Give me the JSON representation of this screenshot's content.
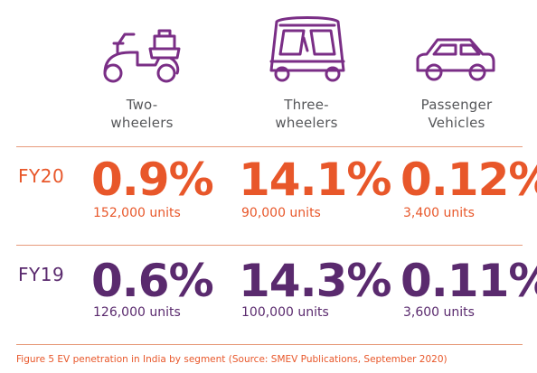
{
  "segments": [
    {
      "label_line1": "Two-",
      "label_line2": "wheelers",
      "icon": "scooter-icon"
    },
    {
      "label_line1": "Three-",
      "label_line2": "wheelers",
      "icon": "auto-rickshaw-icon"
    },
    {
      "label_line1": "Passenger",
      "label_line2": "Vehicles",
      "icon": "car-icon"
    }
  ],
  "rows": [
    {
      "label": "FY20",
      "color": "#e8572a",
      "cells": [
        {
          "pct": "0.9%",
          "units": "152,000 units"
        },
        {
          "pct": "14.1%",
          "units": "90,000 units"
        },
        {
          "pct": "0.12%",
          "units": "3,400 units"
        }
      ]
    },
    {
      "label": "FY19",
      "color": "#5a2a6e",
      "cells": [
        {
          "pct": "0.6%",
          "units": "126,000 units"
        },
        {
          "pct": "14.3%",
          "units": "100,000 units"
        },
        {
          "pct": "0.11%",
          "units": "3,600 units"
        }
      ]
    }
  ],
  "caption": "Figure 5 EV penetration in India by segment (Source: SMEV Publications, September 2020)",
  "colors": {
    "icon": "#7a2e86",
    "divider": "#e79a7a"
  }
}
